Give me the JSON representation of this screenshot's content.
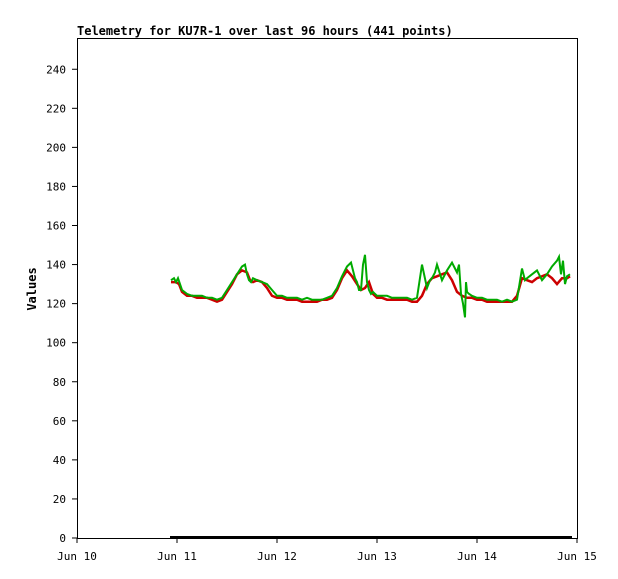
{
  "chart_data": {
    "type": "line",
    "title": "Telemetry for KU7R-1 over last 96 hours (441 points)",
    "xlabel": "",
    "ylabel": "Values",
    "x_ticks": [
      "Jun 10",
      "Jun 11",
      "Jun 12",
      "Jun 13",
      "Jun 14",
      "Jun 15"
    ],
    "xlim": [
      "Jun 10",
      "Jun 15"
    ],
    "y_ticks": [
      0,
      20,
      40,
      60,
      80,
      100,
      120,
      140,
      160,
      180,
      200,
      220,
      240
    ],
    "ylim": [
      0,
      256
    ],
    "grid": false,
    "legend": "none",
    "colors": {
      "series_red": "#cc0000",
      "series_green": "#00aa00",
      "baseline": "#000000"
    },
    "series": [
      {
        "color": "#cc0000",
        "x": [
          0.94,
          0.99,
          1.02,
          1.05,
          1.1,
          1.15,
          1.2,
          1.25,
          1.3,
          1.35,
          1.4,
          1.45,
          1.5,
          1.55,
          1.6,
          1.65,
          1.7,
          1.73,
          1.76,
          1.8,
          1.85,
          1.9,
          1.95,
          2.0,
          2.05,
          2.1,
          2.15,
          2.2,
          2.25,
          2.3,
          2.35,
          2.4,
          2.45,
          2.5,
          2.55,
          2.6,
          2.65,
          2.7,
          2.75,
          2.8,
          2.84,
          2.88,
          2.92,
          2.96,
          3.0,
          3.05,
          3.1,
          3.15,
          3.2,
          3.25,
          3.3,
          3.35,
          3.4,
          3.45,
          3.5,
          3.55,
          3.6,
          3.65,
          3.7,
          3.75,
          3.8,
          3.85,
          3.9,
          3.95,
          4.0,
          4.05,
          4.1,
          4.15,
          4.2,
          4.25,
          4.3,
          4.35,
          4.4,
          4.45,
          4.5,
          4.55,
          4.6,
          4.65,
          4.7,
          4.75,
          4.8,
          4.85,
          4.9,
          4.93
        ],
        "y": [
          131,
          131,
          130,
          126,
          124,
          124,
          123,
          123,
          123,
          122,
          121,
          122,
          126,
          130,
          135,
          137,
          136,
          132,
          131,
          132,
          131,
          128,
          124,
          123,
          123,
          122,
          122,
          122,
          121,
          121,
          121,
          121,
          122,
          122,
          123,
          127,
          133,
          137,
          134,
          130,
          127,
          128,
          131,
          125,
          123,
          123,
          122,
          122,
          122,
          122,
          122,
          121,
          121,
          124,
          130,
          133,
          134,
          135,
          136,
          132,
          126,
          124,
          123,
          123,
          122,
          122,
          121,
          121,
          121,
          121,
          121,
          121,
          124,
          133,
          132,
          131,
          133,
          134,
          135,
          133,
          130,
          133,
          133,
          134
        ]
      },
      {
        "color": "#00aa00",
        "x": [
          0.94,
          0.97,
          0.99,
          1.01,
          1.03,
          1.05,
          1.1,
          1.15,
          1.2,
          1.25,
          1.3,
          1.35,
          1.4,
          1.45,
          1.5,
          1.55,
          1.6,
          1.65,
          1.68,
          1.7,
          1.72,
          1.74,
          1.76,
          1.8,
          1.85,
          1.9,
          1.95,
          2.0,
          2.05,
          2.1,
          2.15,
          2.2,
          2.25,
          2.3,
          2.35,
          2.4,
          2.45,
          2.5,
          2.55,
          2.6,
          2.65,
          2.7,
          2.74,
          2.78,
          2.8,
          2.82,
          2.84,
          2.86,
          2.88,
          2.9,
          2.92,
          2.94,
          2.96,
          2.98,
          3.0,
          3.05,
          3.1,
          3.15,
          3.2,
          3.25,
          3.3,
          3.35,
          3.4,
          3.45,
          3.5,
          3.53,
          3.55,
          3.58,
          3.6,
          3.65,
          3.7,
          3.75,
          3.78,
          3.8,
          3.82,
          3.84,
          3.86,
          3.88,
          3.89,
          3.9,
          3.92,
          3.95,
          4.0,
          4.05,
          4.1,
          4.15,
          4.2,
          4.25,
          4.3,
          4.35,
          4.4,
          4.45,
          4.48,
          4.5,
          4.55,
          4.6,
          4.65,
          4.7,
          4.75,
          4.8,
          4.82,
          4.84,
          4.86,
          4.88,
          4.9,
          4.93
        ],
        "y": [
          132,
          133,
          131,
          133,
          130,
          127,
          125,
          124,
          124,
          124,
          123,
          123,
          122,
          123,
          127,
          131,
          135,
          139,
          140,
          135,
          132,
          131,
          133,
          132,
          131,
          130,
          127,
          124,
          124,
          123,
          123,
          123,
          122,
          123,
          122,
          122,
          122,
          123,
          124,
          128,
          134,
          139,
          141,
          133,
          131,
          127,
          127,
          140,
          145,
          131,
          127,
          125,
          126,
          125,
          124,
          124,
          124,
          123,
          123,
          123,
          123,
          122,
          123,
          140,
          128,
          132,
          133,
          136,
          140,
          132,
          137,
          141,
          138,
          136,
          140,
          125,
          120,
          113,
          131,
          126,
          125,
          124,
          123,
          123,
          122,
          122,
          122,
          121,
          122,
          121,
          122,
          138,
          132,
          133,
          135,
          137,
          132,
          135,
          139,
          142,
          144,
          135,
          142,
          130,
          134,
          135
        ]
      }
    ]
  }
}
